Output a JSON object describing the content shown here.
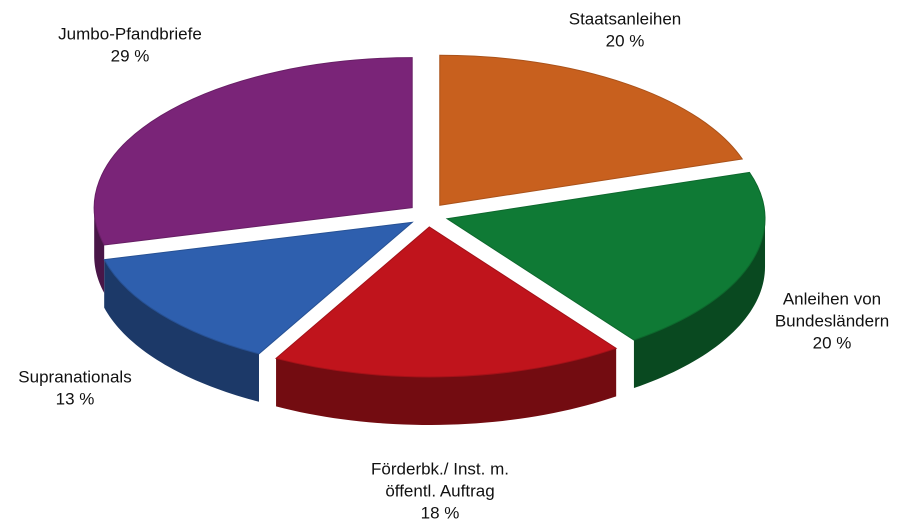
{
  "chart_data": {
    "type": "pie3d",
    "categories": [
      [
        "Staatsanleihen"
      ],
      [
        "Anleihen von",
        "Bundesländern"
      ],
      [
        "Förderbk./ Inst. m.",
        "öffentl. Auftrag"
      ],
      [
        "Supranationals"
      ],
      [
        "Jumbo-Pfandbriefe"
      ]
    ],
    "values": [
      20,
      20,
      18,
      13,
      29
    ],
    "value_labels": [
      "20 %",
      "20 %",
      "18 %",
      "13 %",
      "29 %"
    ],
    "colors": [
      "#c8601e",
      "#0f7a35",
      "#c0141c",
      "#2e5fae",
      "#7a2478"
    ]
  }
}
